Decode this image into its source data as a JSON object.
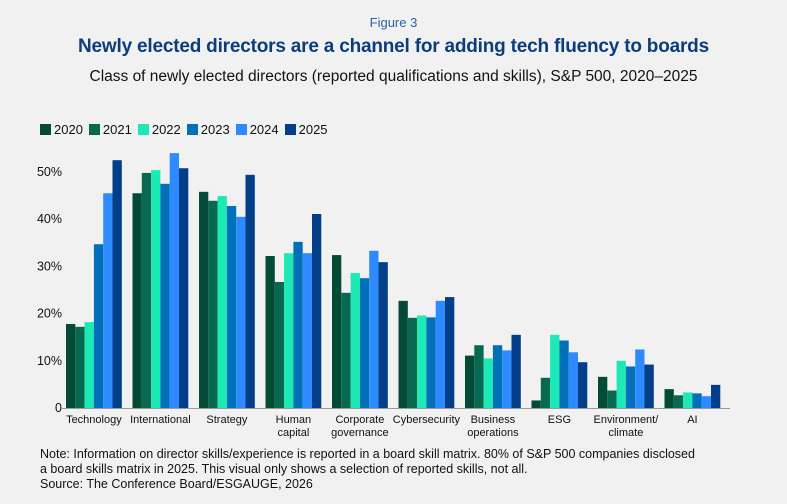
{
  "figure_label": "Figure 3",
  "title": "Newly elected directors are a channel for adding tech fluency to boards",
  "subtitle": "Class of newly elected directors (reported qualifications and skills), S&P 500, 2020–2025",
  "notes": [
    "Note: Information on director skills/experience is reported in a board skill matrix. 80% of S&P 500 companies disclosed",
    "a board skills matrix in 2025. This visual only shows a selection of reported skills, not all.",
    "Source: The Conference Board/ESGAUGE, 2026"
  ],
  "chart_data": {
    "type": "bar",
    "title": "Newly elected directors are a channel for adding tech fluency to boards",
    "xlabel": "",
    "ylabel": "",
    "ylim": [
      0,
      55
    ],
    "yticks": [
      0,
      10,
      20,
      30,
      40,
      50
    ],
    "ytick_labels": [
      "0",
      "10%",
      "20%",
      "30%",
      "40%",
      "50%"
    ],
    "legend_position": "top-left",
    "grid": false,
    "categories": [
      [
        "Technology"
      ],
      [
        "International"
      ],
      [
        "Strategy"
      ],
      [
        "Human",
        "capital"
      ],
      [
        "Corporate",
        "governance"
      ],
      [
        "Cybersecurity"
      ],
      [
        "Business",
        "operations"
      ],
      [
        "ESG"
      ],
      [
        "Environment/",
        "climate"
      ],
      [
        "AI"
      ]
    ],
    "series": [
      {
        "name": "2020",
        "color": "#034a37",
        "values": [
          17.8,
          45.5,
          45.8,
          32.2,
          32.4,
          22.7,
          11.1,
          1.6,
          6.6,
          4.0
        ]
      },
      {
        "name": "2021",
        "color": "#07694f",
        "values": [
          17.2,
          49.8,
          43.9,
          26.7,
          24.4,
          19.1,
          13.3,
          6.4,
          3.7,
          2.7
        ]
      },
      {
        "name": "2022",
        "color": "#1de9b6",
        "values": [
          18.2,
          50.4,
          44.9,
          32.8,
          28.6,
          19.6,
          10.5,
          15.5,
          10.0,
          3.3
        ]
      },
      {
        "name": "2023",
        "color": "#0170b8",
        "values": [
          34.7,
          47.5,
          42.8,
          35.2,
          27.5,
          19.2,
          13.3,
          14.3,
          8.8,
          3.1
        ]
      },
      {
        "name": "2024",
        "color": "#2d8bff",
        "values": [
          45.5,
          54.0,
          40.5,
          32.8,
          33.3,
          22.7,
          12.2,
          11.8,
          12.4,
          2.5
        ]
      },
      {
        "name": "2025",
        "color": "#033f88",
        "values": [
          52.5,
          50.8,
          49.4,
          41.1,
          30.9,
          23.5,
          15.5,
          9.7,
          9.2,
          4.9
        ]
      }
    ]
  }
}
